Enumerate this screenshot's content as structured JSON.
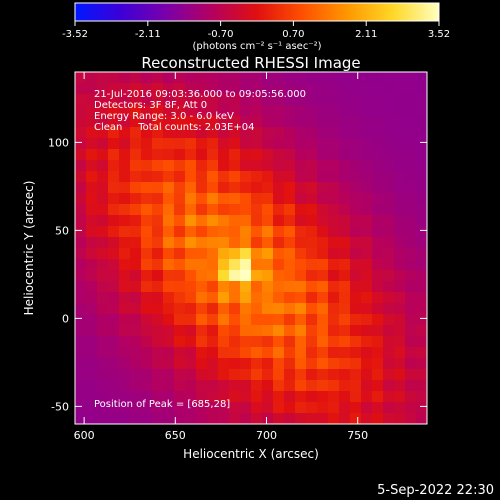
{
  "chart_data": {
    "type": "heatmap",
    "title": "Reconstructed RHESSI Image",
    "xlabel": "Heliocentric X (arcsec)",
    "ylabel": "Heliocentric Y (arcsec)",
    "xlim": [
      595,
      788
    ],
    "ylim": [
      -60,
      140
    ],
    "xticks": [
      "600",
      "650",
      "700",
      "750"
    ],
    "yticks": [
      "-50",
      "0",
      "50",
      "100"
    ],
    "colorbar": {
      "ticks": [
        "-3.52",
        "-2.11",
        "-0.70",
        "0.70",
        "2.11",
        "3.52"
      ],
      "units": "(photons cm⁻² s⁻¹ asec⁻²)",
      "range": [
        -3.52,
        3.52
      ],
      "colors": [
        "#0018ff",
        "#3c00d8",
        "#7a00aa",
        "#b40060",
        "#e01010",
        "#ff5000",
        "#ff9800",
        "#ffd828",
        "#ffffc0"
      ]
    },
    "annotations": [
      "21-Jul-2016 09:03:36.000 to 09:05:56.000",
      "Detectors: 3F 8F, Att 0",
      "Energy Range: 3.0 - 6.0 keV",
      "Clean     Total counts: 2.03E+04"
    ],
    "peak_label": "Position of Peak = [685,28]",
    "peak": [
      685,
      28
    ],
    "footer_date": "5-Sep-2022 22:30"
  }
}
